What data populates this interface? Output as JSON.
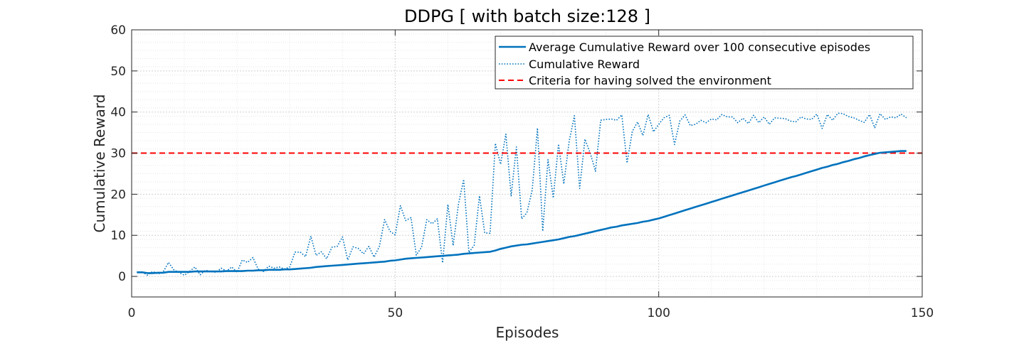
{
  "chart_data": {
    "type": "line",
    "title": "DDPG [ with batch size:128 ]",
    "xlabel": "Episodes",
    "ylabel": "Cumulative Reward",
    "xlim": [
      0,
      150
    ],
    "ylim": [
      -5,
      60
    ],
    "xticks": [
      0,
      50,
      100,
      150
    ],
    "yticks": [
      0,
      10,
      20,
      30,
      40,
      50,
      60
    ],
    "grid": true,
    "minor_grid": true,
    "legend_position": "top-right",
    "colors": {
      "average": "#0072bd",
      "raw": "#0072bd",
      "criteria": "#ff0000"
    },
    "series": [
      {
        "name": "Average Cumulative Reward over 100 consecutive episodes",
        "style": "solid",
        "x": [
          1,
          2,
          3,
          4,
          5,
          6,
          7,
          8,
          9,
          10,
          11,
          12,
          13,
          14,
          15,
          16,
          17,
          18,
          19,
          20,
          21,
          22,
          23,
          24,
          25,
          26,
          27,
          28,
          29,
          30,
          31,
          32,
          33,
          34,
          35,
          36,
          37,
          38,
          39,
          40,
          41,
          42,
          43,
          44,
          45,
          46,
          47,
          48,
          49,
          50,
          51,
          52,
          53,
          54,
          55,
          56,
          57,
          58,
          59,
          60,
          61,
          62,
          63,
          64,
          65,
          66,
          67,
          68,
          69,
          70,
          71,
          72,
          73,
          74,
          75,
          76,
          77,
          78,
          79,
          80,
          81,
          82,
          83,
          84,
          85,
          86,
          87,
          88,
          89,
          90,
          91,
          92,
          93,
          94,
          95,
          96,
          97,
          98,
          99,
          100,
          101,
          102,
          103,
          104,
          105,
          106,
          107,
          108,
          109,
          110,
          111,
          112,
          113,
          114,
          115,
          116,
          117,
          118,
          119,
          120,
          121,
          122,
          123,
          124,
          125,
          126,
          127,
          128,
          129,
          130,
          131,
          132,
          133,
          134,
          135,
          136,
          137,
          138,
          139,
          140,
          141,
          142,
          143,
          144,
          145,
          146,
          147
        ],
        "values": [
          1.0,
          1.0,
          0.8,
          0.8,
          0.9,
          0.9,
          1.1,
          1.1,
          1.1,
          1.1,
          1.1,
          1.2,
          1.2,
          1.2,
          1.2,
          1.2,
          1.2,
          1.3,
          1.3,
          1.3,
          1.3,
          1.4,
          1.4,
          1.5,
          1.5,
          1.6,
          1.6,
          1.6,
          1.7,
          1.7,
          1.8,
          1.9,
          2.0,
          2.1,
          2.3,
          2.4,
          2.5,
          2.6,
          2.7,
          2.8,
          2.9,
          3.0,
          3.1,
          3.2,
          3.3,
          3.4,
          3.5,
          3.6,
          3.8,
          3.9,
          4.1,
          4.3,
          4.4,
          4.5,
          4.6,
          4.7,
          4.8,
          4.9,
          5.0,
          5.1,
          5.2,
          5.3,
          5.5,
          5.6,
          5.7,
          5.8,
          5.9,
          6.0,
          6.3,
          6.7,
          7.0,
          7.3,
          7.5,
          7.7,
          7.8,
          8.0,
          8.2,
          8.4,
          8.6,
          8.8,
          9.0,
          9.3,
          9.6,
          9.8,
          10.1,
          10.4,
          10.7,
          11.0,
          11.3,
          11.6,
          11.9,
          12.1,
          12.4,
          12.6,
          12.8,
          13.0,
          13.3,
          13.5,
          13.8,
          14.1,
          14.5,
          14.9,
          15.3,
          15.7,
          16.1,
          16.5,
          16.9,
          17.3,
          17.7,
          18.1,
          18.5,
          18.9,
          19.3,
          19.7,
          20.1,
          20.5,
          20.9,
          21.3,
          21.7,
          22.1,
          22.5,
          22.9,
          23.3,
          23.7,
          24.1,
          24.4,
          24.8,
          25.2,
          25.6,
          26.0,
          26.4,
          26.7,
          27.1,
          27.4,
          27.8,
          28.1,
          28.5,
          28.8,
          29.2,
          29.5,
          29.8,
          30.1,
          30.2,
          30.3,
          30.4,
          30.5,
          30.5
        ]
      },
      {
        "name": "Cumulative Reward",
        "style": "dotted",
        "x": [
          1,
          2,
          3,
          4,
          5,
          6,
          7,
          8,
          9,
          10,
          11,
          12,
          13,
          14,
          15,
          16,
          17,
          18,
          19,
          20,
          21,
          22,
          23,
          24,
          25,
          26,
          27,
          28,
          29,
          30,
          31,
          32,
          33,
          34,
          35,
          36,
          37,
          38,
          39,
          40,
          41,
          42,
          43,
          44,
          45,
          46,
          47,
          48,
          49,
          50,
          51,
          52,
          53,
          54,
          55,
          56,
          57,
          58,
          59,
          60,
          61,
          62,
          63,
          64,
          65,
          66,
          67,
          68,
          69,
          70,
          71,
          72,
          73,
          74,
          75,
          76,
          77,
          78,
          79,
          80,
          81,
          82,
          83,
          84,
          85,
          86,
          87,
          88,
          89,
          90,
          91,
          92,
          93,
          94,
          95,
          96,
          97,
          98,
          99,
          100,
          101,
          102,
          103,
          104,
          105,
          106,
          107,
          108,
          109,
          110,
          111,
          112,
          113,
          114,
          115,
          116,
          117,
          118,
          119,
          120,
          121,
          122,
          123,
          124,
          125,
          126,
          127,
          128,
          129,
          130,
          131,
          132,
          133,
          134,
          135,
          136,
          137,
          138,
          139,
          140,
          141,
          142,
          143,
          144,
          145,
          146,
          147
        ],
        "values": [
          1.0,
          1.1,
          0.3,
          1.2,
          0.6,
          1.1,
          3.4,
          1.6,
          0.9,
          0.3,
          1.2,
          2.3,
          0.4,
          1.5,
          1.2,
          1.0,
          2.0,
          1.3,
          2.3,
          1.0,
          4.0,
          3.4,
          4.6,
          1.8,
          1.2,
          2.5,
          2.0,
          2.3,
          1.8,
          2.3,
          5.9,
          5.9,
          4.8,
          9.8,
          5.1,
          6.0,
          4.3,
          7.1,
          7.3,
          9.6,
          4.0,
          7.2,
          6.8,
          5.5,
          7.3,
          4.7,
          7.3,
          13.8,
          11.0,
          10.1,
          17.2,
          13.6,
          14.3,
          5.2,
          7.1,
          13.8,
          12.8,
          14.0,
          3.3,
          17.5,
          7.5,
          17.5,
          23.6,
          5.8,
          7.6,
          19.6,
          10.6,
          10.5,
          32.4,
          27.3,
          34.6,
          19.6,
          31.5,
          14.0,
          15.5,
          21.0,
          36.1,
          11.0,
          28.4,
          19.1,
          32.2,
          22.5,
          32.8,
          39.1,
          21.4,
          33.4,
          30.0,
          25.6,
          38.0,
          38.2,
          38.3,
          38.0,
          39.3,
          27.6,
          35.3,
          37.6,
          34.3,
          39.4,
          35.2,
          37.0,
          38.6,
          39.2,
          32.1,
          37.8,
          39.3,
          36.7,
          37.0,
          38.0,
          37.4,
          38.3,
          38.1,
          39.4,
          38.8,
          38.8,
          37.4,
          38.5,
          37.2,
          39.2,
          37.4,
          38.8,
          37.0,
          38.6,
          38.5,
          38.4,
          37.8,
          37.6,
          38.8,
          38.3,
          38.2,
          39.5,
          36.0,
          39.4,
          38.0,
          39.7,
          39.6,
          38.9,
          38.6,
          38.0,
          37.5,
          39.4,
          36.2,
          39.6,
          38.2,
          38.8,
          38.6,
          39.5,
          38.6
        ]
      },
      {
        "name": "Criteria for having solved the environment",
        "style": "dashed",
        "constant": 30
      }
    ]
  }
}
